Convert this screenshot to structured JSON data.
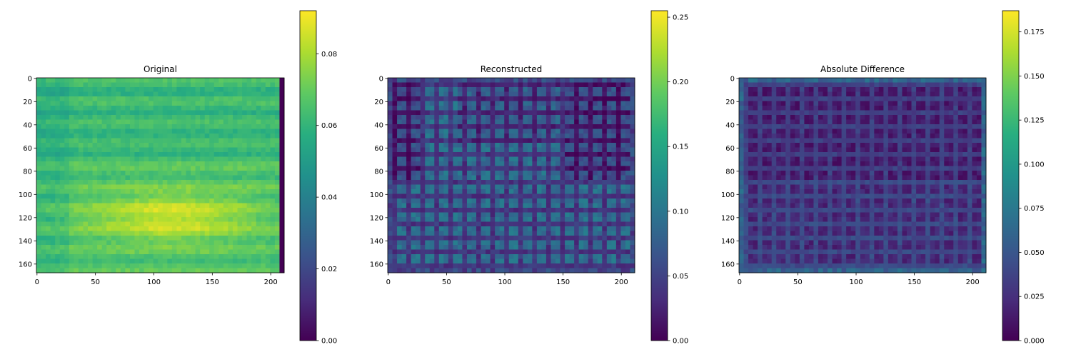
{
  "chart_data": [
    {
      "type": "heatmap",
      "title": "Original",
      "image_shape": [
        168,
        212
      ],
      "x_ticks": [
        0,
        50,
        100,
        150,
        200
      ],
      "y_ticks": [
        0,
        20,
        40,
        60,
        80,
        100,
        120,
        140,
        160
      ],
      "colormap": "viridis",
      "colorbar": {
        "range": [
          0.0,
          0.092
        ],
        "ticks": [
          "0.00",
          "0.02",
          "0.04",
          "0.06",
          "0.08"
        ],
        "tick_values": [
          0.0,
          0.02,
          0.04,
          0.06,
          0.08
        ]
      },
      "pattern": "smooth field ~0.06-0.08, brightest band near rows 100-140 (~0.085-0.09), darker bands near rows 20-60 (~0.06), dark column at right edge (~0.0)"
    },
    {
      "type": "heatmap",
      "title": "Reconstructed",
      "image_shape": [
        168,
        212
      ],
      "x_ticks": [
        0,
        50,
        100,
        150,
        200
      ],
      "y_ticks": [
        0,
        20,
        40,
        60,
        80,
        100,
        120,
        140,
        160
      ],
      "colormap": "viridis",
      "colorbar": {
        "range": [
          0.0,
          0.255
        ],
        "ticks": [
          "0.00",
          "0.05",
          "0.10",
          "0.15",
          "0.20",
          "0.25"
        ],
        "tick_values": [
          0.0,
          0.05,
          0.1,
          0.15,
          0.2,
          0.25
        ]
      },
      "pattern": "grid-like checker texture ~0.06-0.10 with darker regions in upper area and dark border"
    },
    {
      "type": "heatmap",
      "title": "Absolute Difference",
      "image_shape": [
        168,
        212
      ],
      "x_ticks": [
        0,
        50,
        100,
        150,
        200
      ],
      "y_ticks": [
        0,
        20,
        40,
        60,
        80,
        100,
        120,
        140,
        160
      ],
      "colormap": "viridis",
      "colorbar": {
        "range": [
          0.0,
          0.187
        ],
        "ticks": [
          "0.000",
          "0.025",
          "0.050",
          "0.075",
          "0.100",
          "0.125",
          "0.150",
          "0.175"
        ],
        "tick_values": [
          0.0,
          0.025,
          0.05,
          0.075,
          0.1,
          0.125,
          0.15,
          0.175
        ]
      },
      "pattern": "mostly low values ~0.01-0.04 with grid texture, slightly brighter border ~0.06"
    }
  ]
}
